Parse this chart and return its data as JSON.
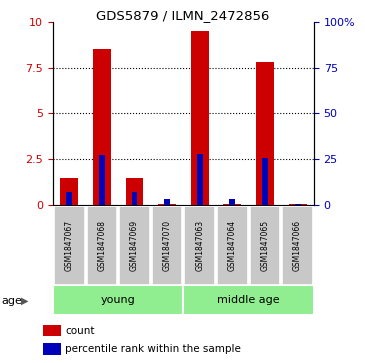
{
  "title": "GDS5879 / ILMN_2472856",
  "samples": [
    "GSM1847067",
    "GSM1847068",
    "GSM1847069",
    "GSM1847070",
    "GSM1847063",
    "GSM1847064",
    "GSM1847065",
    "GSM1847066"
  ],
  "red_values": [
    1.5,
    8.5,
    1.5,
    0.05,
    9.5,
    0.05,
    7.8,
    0.05
  ],
  "blue_pct_values": [
    7.0,
    27.5,
    7.0,
    3.5,
    28.0,
    3.5,
    25.5,
    0.5
  ],
  "groups": [
    {
      "label": "young",
      "indices": [
        0,
        1,
        2,
        3
      ],
      "color": "#90ee90"
    },
    {
      "label": "middle age",
      "indices": [
        4,
        5,
        6,
        7
      ],
      "color": "#90ee90"
    }
  ],
  "ylim_left": [
    0,
    10
  ],
  "ylim_right": [
    0,
    100
  ],
  "yticks_left": [
    0,
    2.5,
    5.0,
    7.5,
    10.0
  ],
  "ytick_labels_left": [
    "0",
    "2.5",
    "5",
    "7.5",
    "10"
  ],
  "yticks_right": [
    0,
    25,
    50,
    75,
    100
  ],
  "ytick_labels_right": [
    "0",
    "25",
    "50",
    "75",
    "100%"
  ],
  "bar_color_red": "#cc0000",
  "bar_color_blue": "#0000bb",
  "red_bar_width": 0.55,
  "blue_bar_width": 0.18,
  "tick_color_left": "#cc0000",
  "tick_color_right": "#0000bb",
  "grid_yticks": [
    0,
    2.5,
    5.0,
    7.5
  ],
  "sample_box_color": "#c8c8c8",
  "group_box_color": "#90ee90",
  "age_label": "age",
  "legend_red_label": "count",
  "legend_blue_label": "percentile rank within the sample"
}
